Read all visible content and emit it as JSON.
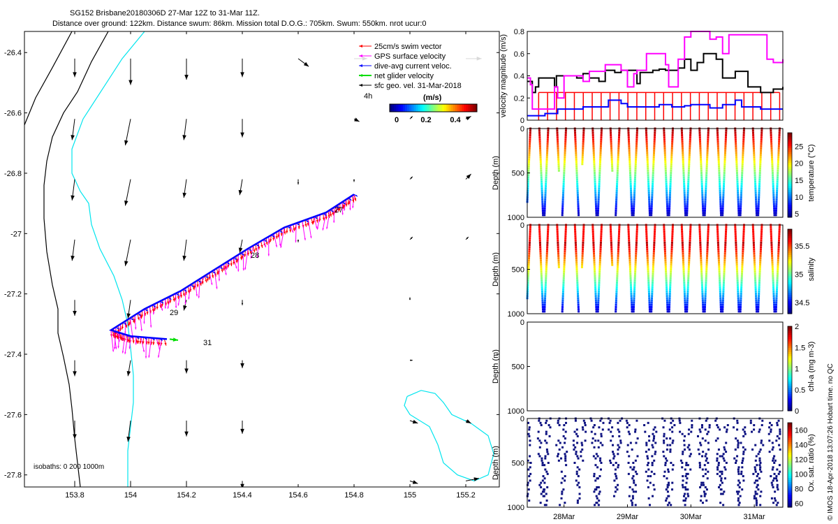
{
  "title_line1": "SG152 Brisbane20180306D 27-Mar 12Z to 31-Mar 11Z.",
  "title_line2": "Distance over ground: 122km. Distance swum: 86km. Mission total D.O.G.: 705km. Swum: 550km. nrot ucur:0",
  "footer_note": "© IMOS 18-Apr-2018 13:07:26 Hobart time. no QC",
  "colors": {
    "swim": "#ff0000",
    "gps": "#ff00ff",
    "dive_avg": "#0000ff",
    "net": "#00dd00",
    "sfc": "#000000",
    "coast": "#00e5ee",
    "isobath": "#000000"
  },
  "chart_data": [
    {
      "id": "map",
      "type": "vector_map",
      "xlim": [
        153.62,
        155.32
      ],
      "ylim": [
        -27.84,
        -26.33
      ],
      "x_ticks": [
        153.8,
        154,
        154.2,
        154.4,
        154.6,
        154.8,
        155,
        155.2
      ],
      "x_tick_labels": [
        "153.8",
        "154",
        "154.2",
        "154.4",
        "154.6",
        "154.8",
        "155",
        "155.2"
      ],
      "y_ticks": [
        -26.4,
        -26.6,
        -26.8,
        -27,
        -27.2,
        -27.4,
        -27.6,
        -27.8
      ],
      "y_tick_labels": [
        "-26.4",
        "-26.6",
        "-26.8",
        "-27",
        "-27.2",
        "-27.4",
        "-27.6",
        "-27.8"
      ],
      "legend": {
        "placement": "top-right",
        "entries": [
          {
            "label": "25cm/s swim vector",
            "color_key": "swim"
          },
          {
            "label": "GPS surface velocity",
            "color_key": "gps"
          },
          {
            "label": "dive-avg current veloc.",
            "color_key": "dive_avg"
          },
          {
            "label": "net glider velocity",
            "color_key": "net"
          },
          {
            "label": "sfc geo. vel. 31-Mar-2018",
            "color_key": "sfc"
          }
        ],
        "scale_label": "4h"
      },
      "colorbar": {
        "label": "(m/s)",
        "ticks": [
          "0",
          "0.2",
          "0.4"
        ],
        "range": [
          0,
          0.5
        ]
      },
      "isobaths_label": "isobaths: 0   200   1000m",
      "day_labels": [
        {
          "text": "27",
          "lon": 154.73,
          "lat": -26.93
        },
        {
          "text": "28",
          "lon": 154.43,
          "lat": -27.08
        },
        {
          "text": "29",
          "lon": 154.14,
          "lat": -27.27
        },
        {
          "text": "31",
          "lon": 154.26,
          "lat": -27.37
        }
      ],
      "track": [
        {
          "lon": 154.8,
          "lat": -26.87
        },
        {
          "lon": 154.7,
          "lat": -26.93
        },
        {
          "lon": 154.55,
          "lat": -26.98
        },
        {
          "lon": 154.42,
          "lat": -27.05
        },
        {
          "lon": 154.3,
          "lat": -27.12
        },
        {
          "lon": 154.18,
          "lat": -27.19
        },
        {
          "lon": 154.05,
          "lat": -27.25
        },
        {
          "lon": 153.93,
          "lat": -27.32
        },
        {
          "lon": 154.0,
          "lat": -27.34
        },
        {
          "lon": 154.13,
          "lat": -27.35
        }
      ],
      "net_velocity": {
        "lon": 154.14,
        "lat": -27.35,
        "u": 0.04,
        "v": -0.005
      },
      "coastline": [
        {
          "lon": 154.05,
          "lat": -26.33
        },
        {
          "lon": 153.97,
          "lat": -26.42
        },
        {
          "lon": 153.9,
          "lat": -26.52
        },
        {
          "lon": 153.83,
          "lat": -26.62
        },
        {
          "lon": 153.79,
          "lat": -26.72
        },
        {
          "lon": 153.79,
          "lat": -26.8
        },
        {
          "lon": 153.82,
          "lat": -26.86
        },
        {
          "lon": 153.85,
          "lat": -26.9
        },
        {
          "lon": 153.86,
          "lat": -26.97
        },
        {
          "lon": 153.89,
          "lat": -27.05
        },
        {
          "lon": 153.94,
          "lat": -27.14
        },
        {
          "lon": 153.97,
          "lat": -27.22
        },
        {
          "lon": 153.99,
          "lat": -27.3
        },
        {
          "lon": 154.0,
          "lat": -27.38
        },
        {
          "lon": 154.01,
          "lat": -27.47
        },
        {
          "lon": 154.01,
          "lat": -27.56
        },
        {
          "lon": 154.0,
          "lat": -27.64
        },
        {
          "lon": 153.99,
          "lat": -27.72
        },
        {
          "lon": 153.99,
          "lat": -27.84
        }
      ],
      "island": [
        {
          "lon": 154.99,
          "lat": -27.54
        },
        {
          "lon": 155.04,
          "lat": -27.52
        },
        {
          "lon": 155.09,
          "lat": -27.53
        },
        {
          "lon": 155.12,
          "lat": -27.56
        },
        {
          "lon": 155.15,
          "lat": -27.6
        },
        {
          "lon": 155.22,
          "lat": -27.63
        },
        {
          "lon": 155.28,
          "lat": -27.67
        },
        {
          "lon": 155.3,
          "lat": -27.73
        },
        {
          "lon": 155.28,
          "lat": -27.8
        },
        {
          "lon": 155.23,
          "lat": -27.82
        },
        {
          "lon": 155.17,
          "lat": -27.8
        },
        {
          "lon": 155.12,
          "lat": -27.76
        },
        {
          "lon": 155.1,
          "lat": -27.7
        },
        {
          "lon": 155.07,
          "lat": -27.64
        },
        {
          "lon": 155.0,
          "lat": -27.6
        },
        {
          "lon": 154.98,
          "lat": -27.57
        },
        {
          "lon": 154.99,
          "lat": -27.54
        }
      ],
      "isobath_200": [
        {
          "lon": 153.92,
          "lat": -26.33
        },
        {
          "lon": 153.86,
          "lat": -26.43
        },
        {
          "lon": 153.81,
          "lat": -26.53
        },
        {
          "lon": 153.76,
          "lat": -26.6
        },
        {
          "lon": 153.72,
          "lat": -26.68
        },
        {
          "lon": 153.7,
          "lat": -26.76
        },
        {
          "lon": 153.69,
          "lat": -26.84
        },
        {
          "lon": 153.69,
          "lat": -26.95
        },
        {
          "lon": 153.7,
          "lat": -27.06
        },
        {
          "lon": 153.72,
          "lat": -27.17
        },
        {
          "lon": 153.74,
          "lat": -27.25
        },
        {
          "lon": 153.74,
          "lat": -27.33
        },
        {
          "lon": 153.76,
          "lat": -27.41
        },
        {
          "lon": 153.78,
          "lat": -27.5
        },
        {
          "lon": 153.79,
          "lat": -27.58
        },
        {
          "lon": 153.8,
          "lat": -27.68
        },
        {
          "lon": 153.81,
          "lat": -27.76
        },
        {
          "lon": 153.82,
          "lat": -27.84
        }
      ],
      "isobath_1000": [
        {
          "lon": 153.79,
          "lat": -26.33
        },
        {
          "lon": 153.72,
          "lat": -26.45
        },
        {
          "lon": 153.66,
          "lat": -26.55
        },
        {
          "lon": 153.62,
          "lat": -26.64
        }
      ],
      "geo_vectors": {
        "lons": [
          153.8,
          154.0,
          154.2,
          154.4,
          154.6,
          154.8,
          155.0,
          155.2
        ],
        "lats": [
          -26.42,
          -26.62,
          -26.82,
          -27.02,
          -27.22,
          -27.42,
          -27.62,
          -27.82
        ],
        "u": [
          [
            0.0,
            0.0,
            0.0,
            0.0,
            0.04,
            0.05,
            0.06,
            0.06
          ],
          [
            -0.01,
            -0.02,
            -0.01,
            0.0,
            0.0,
            0.02,
            0.01,
            0.02
          ],
          [
            -0.01,
            -0.02,
            -0.01,
            -0.01,
            0.0,
            0.0,
            0.01,
            0.02
          ],
          [
            -0.01,
            -0.02,
            -0.01,
            -0.01,
            0.0,
            0.0,
            0.01,
            0.01
          ],
          [
            0.0,
            -0.01,
            -0.01,
            0.0,
            0.0,
            0.0,
            0.0,
            0.0
          ],
          [
            0.0,
            -0.01,
            0.0,
            0.0,
            0.0,
            0.0,
            0.01,
            0.0
          ],
          [
            0.0,
            -0.01,
            0.0,
            0.0,
            0.0,
            0.0,
            0.03,
            0.02
          ],
          [
            0.0,
            0.0,
            0.0,
            0.0,
            0.0,
            0.0,
            0.03,
            0.05
          ]
        ],
        "v": [
          [
            -0.07,
            -0.1,
            -0.08,
            -0.07,
            -0.03,
            -0.0,
            0.0,
            0.0
          ],
          [
            -0.08,
            -0.1,
            -0.08,
            -0.07,
            -0.0,
            -0.01,
            0.01,
            0.01
          ],
          [
            -0.08,
            -0.1,
            -0.07,
            -0.06,
            -0.02,
            -0.01,
            0.01,
            0.02
          ],
          [
            -0.08,
            -0.1,
            -0.08,
            -0.05,
            -0.01,
            -0.0,
            0.01,
            0.01
          ],
          [
            -0.06,
            -0.07,
            -0.04,
            -0.02,
            0.0,
            0.0,
            0.01,
            0.0
          ],
          [
            -0.06,
            -0.06,
            -0.05,
            -0.03,
            0.0,
            0.0,
            0.0,
            0.0
          ],
          [
            -0.07,
            -0.08,
            -0.06,
            -0.05,
            -0.0,
            -0.0,
            -0.01,
            -0.01
          ],
          [
            -0.08,
            -0.07,
            -0.04,
            -0.03,
            0.0,
            0.0,
            -0.01,
            0.01
          ]
        ]
      }
    },
    {
      "id": "velocity",
      "type": "line",
      "ylabel": "velocity magnitude (m/s)",
      "ylim": [
        0,
        0.8
      ],
      "yticks": [
        0,
        0.2,
        0.4,
        0.6,
        0.8
      ],
      "ytick_labels": [
        "0",
        "0.2",
        "0.4",
        "0.6",
        "0.8"
      ],
      "xlim": [
        27.42,
        31.45
      ],
      "series": [
        {
          "color_key": "sfc",
          "x": [
            27.42,
            27.5,
            27.55,
            27.6,
            27.75,
            27.85,
            27.88,
            28.0,
            28.2,
            28.3,
            28.4,
            28.55,
            28.65,
            28.8,
            28.9,
            29.0,
            29.15,
            29.2,
            29.4,
            29.5,
            29.6,
            29.8,
            29.9,
            30.0,
            30.1,
            30.2,
            30.4,
            30.5,
            30.7,
            30.9,
            31.1,
            31.3,
            31.45
          ],
          "y": [
            0.35,
            0.25,
            0.3,
            0.38,
            0.38,
            0.3,
            0.4,
            0.4,
            0.38,
            0.42,
            0.38,
            0.35,
            0.45,
            0.43,
            0.45,
            0.45,
            0.33,
            0.43,
            0.45,
            0.46,
            0.45,
            0.47,
            0.55,
            0.45,
            0.52,
            0.6,
            0.55,
            0.38,
            0.44,
            0.3,
            0.25,
            0.28,
            0.3
          ]
        },
        {
          "color_key": "gps",
          "x": [
            27.42,
            27.47,
            27.5,
            27.7,
            27.85,
            27.9,
            28.0,
            28.3,
            28.4,
            28.6,
            28.65,
            28.9,
            29.0,
            29.1,
            29.15,
            29.3,
            29.5,
            29.6,
            29.65,
            29.8,
            29.9,
            30.0,
            30.3,
            30.4,
            30.5,
            30.6,
            31.1,
            31.2,
            31.3,
            31.45
          ],
          "y": [
            0.38,
            0.32,
            0.1,
            0.1,
            0.3,
            0.2,
            0.4,
            0.35,
            0.44,
            0.44,
            0.5,
            0.45,
            0.3,
            0.42,
            0.45,
            0.6,
            0.6,
            0.5,
            0.3,
            0.55,
            0.75,
            0.8,
            0.73,
            0.75,
            0.6,
            0.77,
            0.77,
            0.55,
            0.52,
            0.55
          ]
        },
        {
          "color_key": "dive_avg",
          "x": [
            27.42,
            27.6,
            27.7,
            27.85,
            27.9,
            28.2,
            28.3,
            28.6,
            28.7,
            28.9,
            29.0,
            29.3,
            29.5,
            29.7,
            29.9,
            30.0,
            30.3,
            30.5,
            30.7,
            30.8,
            31.1,
            31.45
          ],
          "y": [
            0.04,
            0.04,
            0.06,
            0.06,
            0.1,
            0.1,
            0.12,
            0.12,
            0.18,
            0.15,
            0.12,
            0.12,
            0.14,
            0.12,
            0.13,
            0.14,
            0.11,
            0.14,
            0.18,
            0.12,
            0.1,
            0.1
          ]
        }
      ],
      "swim_bars": {
        "color_key": "swim",
        "baseline": 0.25,
        "count": 28
      }
    },
    {
      "id": "temperature",
      "type": "scatter",
      "ylabel": "Depth (m)",
      "ylim": [
        1000,
        0
      ],
      "yticks": [
        0,
        500,
        1000
      ],
      "ytick_labels": [
        "0",
        "500",
        "1000"
      ],
      "colorbar": {
        "label": "temperature (°C)",
        "range": [
          4,
          29
        ],
        "ticks": [
          "5",
          "10",
          "15",
          "20",
          "25"
        ]
      },
      "profile_count": 29
    },
    {
      "id": "salinity",
      "type": "scatter",
      "ylabel": "Depth (m)",
      "ylim": [
        1000,
        0
      ],
      "yticks": [
        0,
        500,
        1000
      ],
      "ytick_labels": [
        "0",
        "500",
        "1000"
      ],
      "colorbar": {
        "label": "salinity",
        "range": [
          34.3,
          35.8
        ],
        "ticks": [
          "34.5",
          "35",
          "35.5"
        ]
      },
      "profile_count": 29
    },
    {
      "id": "chla",
      "type": "scatter",
      "ylabel": "Depth (m)",
      "ylim": [
        1000,
        0
      ],
      "yticks": [
        0,
        500,
        1000
      ],
      "ytick_labels": [
        "0",
        "500",
        "1000"
      ],
      "colorbar": {
        "label": "chl-a (mg m-3)",
        "range": [
          0,
          2
        ],
        "ticks": [
          "0",
          "0.5",
          "1",
          "1.5",
          "2"
        ]
      },
      "profile_count": 0
    },
    {
      "id": "oxygen",
      "type": "scatter",
      "ylabel": "Depth (m)",
      "ylim": [
        1000,
        0
      ],
      "yticks": [
        0,
        500,
        1000
      ],
      "ytick_labels": [
        "0",
        "500",
        "1000"
      ],
      "colorbar": {
        "label": "Ox. sat. ratio (%)",
        "range": [
          55,
          170
        ],
        "ticks": [
          "60",
          "80",
          "100",
          "120",
          "140",
          "160"
        ]
      },
      "profile_count": 29
    },
    {
      "id": "time_axis",
      "type": "axis",
      "xlim": [
        27.42,
        31.45
      ],
      "ticks": [
        28,
        29,
        30,
        31
      ],
      "tick_labels": [
        "28Mar",
        "29Mar",
        "30Mar",
        "31Mar"
      ]
    }
  ]
}
